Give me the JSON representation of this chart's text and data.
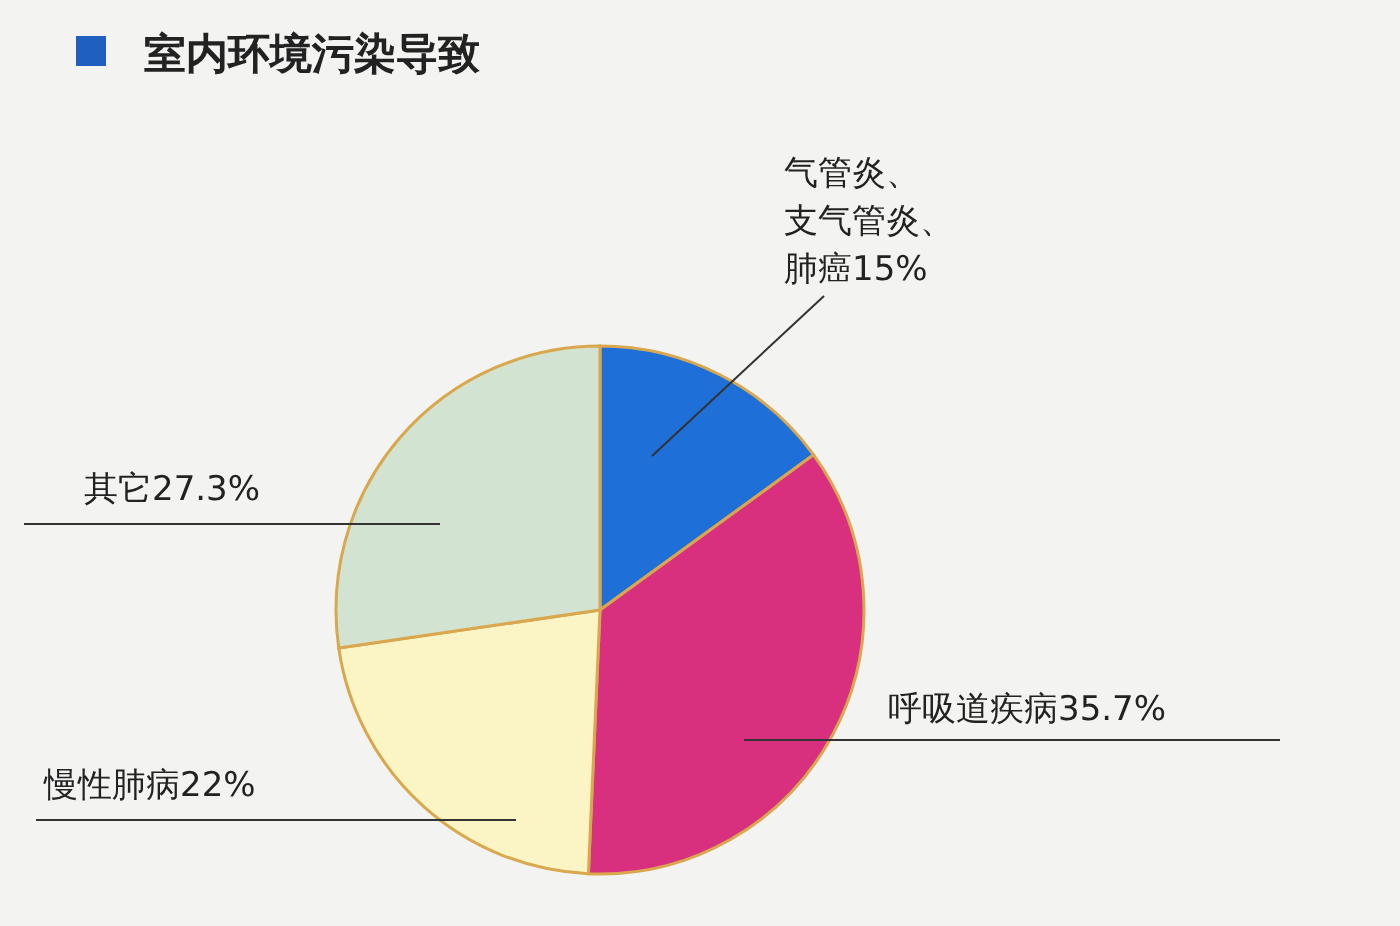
{
  "chart_data": {
    "type": "pie",
    "title": "室内环境污染导致",
    "categories": [
      "气管炎、支气管炎、肺癌",
      "呼吸道疾病",
      "慢性肺病",
      "其它"
    ],
    "values": [
      15,
      35.7,
      22,
      27.3
    ],
    "value_labels": [
      "15%",
      "35.7%",
      "22%",
      "27.3%"
    ],
    "colors": [
      "#1f6fd8",
      "#d8307f",
      "#fbf5c6",
      "#d3e3d2"
    ]
  }
}
